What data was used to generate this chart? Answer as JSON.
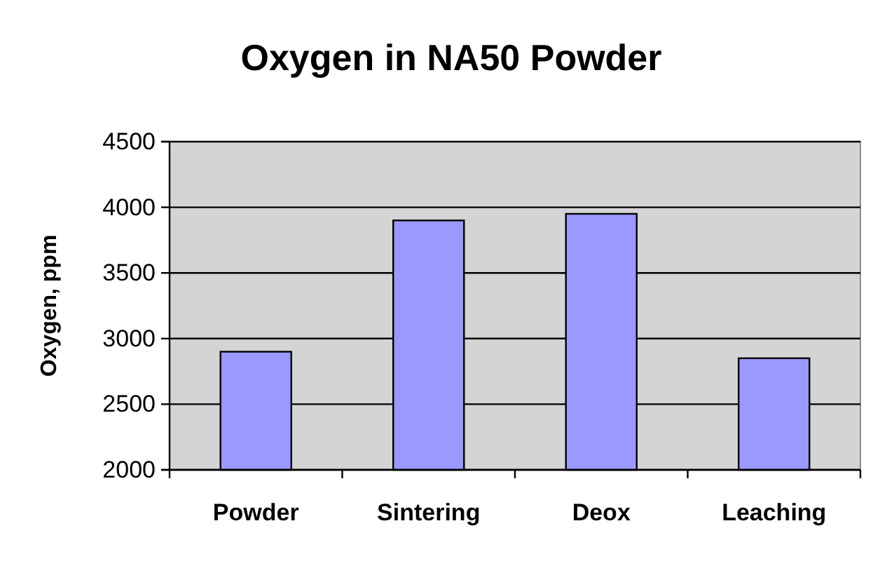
{
  "chart_data": {
    "type": "bar",
    "title": "Oxygen in NA50 Powder",
    "ylabel": "Oxygen, ppm",
    "categories": [
      "Powder",
      "Sintering",
      "Deox",
      "Leaching"
    ],
    "values": [
      2900,
      3900,
      3950,
      2850
    ],
    "color": "#9999ff",
    "ylim": [
      2000,
      4500
    ],
    "yticks": [
      2000,
      2500,
      3000,
      3500,
      4000,
      4500
    ],
    "grid": "y"
  }
}
